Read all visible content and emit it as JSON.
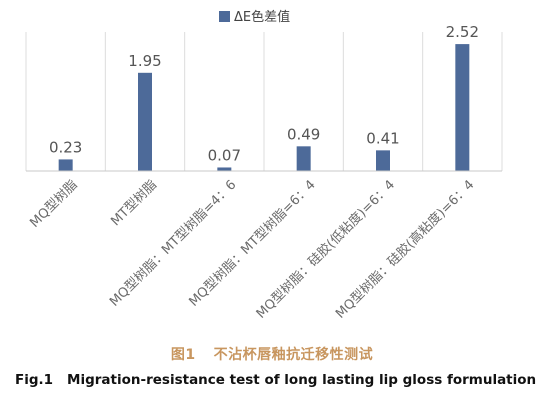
{
  "chart_data": {
    "type": "bar",
    "legend": {
      "label": "ΔE色差值",
      "position": "top-center"
    },
    "categories": [
      "MQ型树脂",
      "MT型树脂",
      "MQ型树脂：MT型树脂=4：6",
      "MQ型树脂：MT型树脂=6：4",
      "MQ型树脂：硅胶(低粘度)=6：4",
      "MQ型树脂：硅胶(高粘度)=6：4"
    ],
    "values": [
      0.23,
      1.95,
      0.07,
      0.49,
      0.41,
      2.52
    ],
    "value_labels": [
      "0.23",
      "1.95",
      "0.07",
      "0.49",
      "0.41",
      "2.52"
    ],
    "ylim": [
      0,
      2.8
    ],
    "grid": "vertical category separators",
    "colors": {
      "bar": "#4d6a99",
      "separator": "#dcdcdc",
      "axis": "#c8c8c8"
    }
  },
  "caption": {
    "cn_number": "图1",
    "cn_title": "不沾杯唇釉抗迁移性测试",
    "cn_color": "#c8965f",
    "en_number": "Fig.1",
    "en_title": "Migration-resistance test of long lasting lip gloss formulation"
  }
}
